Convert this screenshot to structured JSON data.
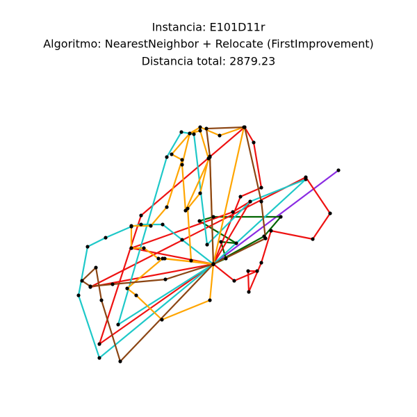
{
  "chart_data": {
    "type": "line",
    "title": "Instancia: E101D11r",
    "subtitle": "Algoritmo: NearestNeighbor + Relocate (FirstImprovement)",
    "annotation": "Distancia total: 2879.23",
    "xlim": [
      80,
      520
    ],
    "ylim": [
      60,
      500
    ],
    "marker_color": "#000000",
    "series": [
      {
        "color": "#8a2be2",
        "x": [
          307,
          487,
          307
        ],
        "y": [
          220,
          355,
          220
        ]
      },
      {
        "color": "#444444",
        "x": [
          307,
          382,
          307
        ],
        "y": [
          220,
          257,
          220
        ]
      },
      {
        "color": "#006400",
        "x": [
          307,
          325,
          318,
          340,
          287,
          307,
          404,
          380,
          307
        ],
        "y": [
          220,
          228,
          252,
          250,
          282,
          288,
          288,
          260,
          220
        ]
      },
      {
        "color": "#ee1111",
        "x": [
          307,
          143,
          203,
          352,
          365,
          376,
          346,
          307
        ],
        "y": [
          220,
          105,
          290,
          417,
          395,
          330,
          317,
          220
        ]
      },
      {
        "color": "#ee1111",
        "x": [
          307,
          130,
          440,
          475,
          450,
          390,
          376,
          358,
          357,
          370,
          337,
          307
        ],
        "y": [
          220,
          187,
          345,
          293,
          256,
          268,
          222,
          180,
          210,
          210,
          196,
          220
        ]
      },
      {
        "color": "#ee1111",
        "x": [
          307,
          189,
          335,
          360,
          307
        ],
        "y": [
          220,
          243,
          295,
          310,
          220
        ]
      },
      {
        "color": "#1ec8c8",
        "x": [
          307,
          143,
          113,
          126,
          152,
          189,
          203,
          234,
          262,
          307
        ],
        "y": [
          220,
          85,
          175,
          245,
          258,
          274,
          277,
          277,
          255,
          220
        ]
      },
      {
        "color": "#1ec8c8",
        "x": [
          307,
          440,
          360,
          298,
          279,
          261,
          240,
          170,
          307
        ],
        "y": [
          220,
          342,
          310,
          248,
          407,
          410,
          374,
          133,
          220
        ]
      },
      {
        "color": "#ffa500",
        "x": [
          307,
          302,
          233,
          196,
          183,
          234,
          307
        ],
        "y": [
          220,
          168,
          140,
          175,
          185,
          228,
          220
        ]
      },
      {
        "color": "#ffa500",
        "x": [
          307,
          275,
          270,
          288,
          300,
          288,
          273,
          247,
          262,
          240,
          217,
          189,
          189,
          207,
          228,
          237,
          307
        ],
        "y": [
          220,
          225,
          300,
          322,
          372,
          412,
          408,
          378,
          370,
          302,
          275,
          275,
          243,
          243,
          228,
          228,
          220
        ]
      },
      {
        "color": "#ffa500",
        "x": [
          307,
          351,
          316,
          288,
          273,
          262,
          267,
          302,
          307
        ],
        "y": [
          220,
          417,
          405,
          417,
          408,
          363,
          297,
          374,
          220
        ]
      },
      {
        "color": "#8b4513",
        "x": [
          307,
          173,
          146,
          138,
          118,
          130,
          162,
          238,
          307
        ],
        "y": [
          220,
          80,
          168,
          215,
          196,
          188,
          191,
          198,
          220
        ]
      },
      {
        "color": "#8b4513",
        "x": [
          307,
          302,
          297,
          352,
          376,
          382,
          307
        ],
        "y": [
          220,
          375,
          415,
          417,
          310,
          257,
          220
        ]
      }
    ]
  }
}
